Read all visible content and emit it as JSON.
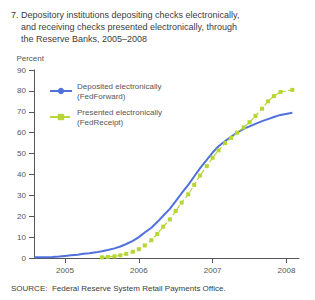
{
  "chart_data": {
    "type": "line",
    "title": "7. Depository institutions depositing checks electronically,\n    and receiving checks presented electronically, through\n    the Reserve Banks, 2005–2008",
    "ylabel": "Percent",
    "annotations": [
      "SOURCE:  Federal Reserve System Retail Payments Office."
    ],
    "xlim": [
      2004.58,
      2008.17
    ],
    "xticks": [
      2005,
      2006,
      2007,
      2008
    ],
    "ylim": [
      0,
      90
    ],
    "yticks": [
      0,
      10,
      20,
      30,
      40,
      50,
      60,
      70,
      80,
      90
    ],
    "grid": false,
    "legend": "upper left",
    "series": [
      {
        "name": "Deposited electronically\n(FedForward)",
        "line_style": "solid",
        "marker": "none",
        "x": [
          2004.58,
          2004.67,
          2004.75,
          2004.83,
          2004.92,
          2005.0,
          2005.08,
          2005.17,
          2005.25,
          2005.33,
          2005.42,
          2005.5,
          2005.58,
          2005.67,
          2005.75,
          2005.83,
          2005.92,
          2006.0,
          2006.08,
          2006.17,
          2006.25,
          2006.33,
          2006.42,
          2006.5,
          2006.58,
          2006.67,
          2006.75,
          2006.83,
          2006.92,
          2007.0,
          2007.08,
          2007.17,
          2007.25,
          2007.33,
          2007.42,
          2007.5,
          2007.58,
          2007.67,
          2007.75,
          2007.83,
          2007.92,
          2008.08
        ],
        "values": [
          0.3,
          0.4,
          0.4,
          0.5,
          0.7,
          1.0,
          1.3,
          1.6,
          2.0,
          2.3,
          2.7,
          3.2,
          3.8,
          4.6,
          5.5,
          6.7,
          8.2,
          10.0,
          12.2,
          14.5,
          17.2,
          20.2,
          23.5,
          27.2,
          31.0,
          35.0,
          39.0,
          43.0,
          47.0,
          50.5,
          53.5,
          56.0,
          58.0,
          60.0,
          61.8,
          63.0,
          64.2,
          65.5,
          66.5,
          67.5,
          68.5,
          69.5
        ]
      },
      {
        "name": "Presented electronically\n(FedReceipt)",
        "line_style": "dashed",
        "marker": "square",
        "x": [
          2005.5,
          2005.58,
          2005.67,
          2005.75,
          2005.83,
          2005.92,
          2006.0,
          2006.08,
          2006.17,
          2006.25,
          2006.33,
          2006.42,
          2006.5,
          2006.58,
          2006.67,
          2006.75,
          2006.83,
          2006.92,
          2007.0,
          2007.08,
          2007.17,
          2007.25,
          2007.33,
          2007.42,
          2007.5,
          2007.58,
          2007.67,
          2007.75,
          2007.83,
          2007.92,
          2008.08
        ],
        "values": [
          0.3,
          0.5,
          0.8,
          1.3,
          2.0,
          3.0,
          4.2,
          6.0,
          8.5,
          11.5,
          15.0,
          18.5,
          22.5,
          26.5,
          30.5,
          35.0,
          39.5,
          44.0,
          48.0,
          51.5,
          55.0,
          57.5,
          60.0,
          62.5,
          65.0,
          68.0,
          71.5,
          75.0,
          77.5,
          79.5,
          80.5
        ]
      }
    ]
  }
}
